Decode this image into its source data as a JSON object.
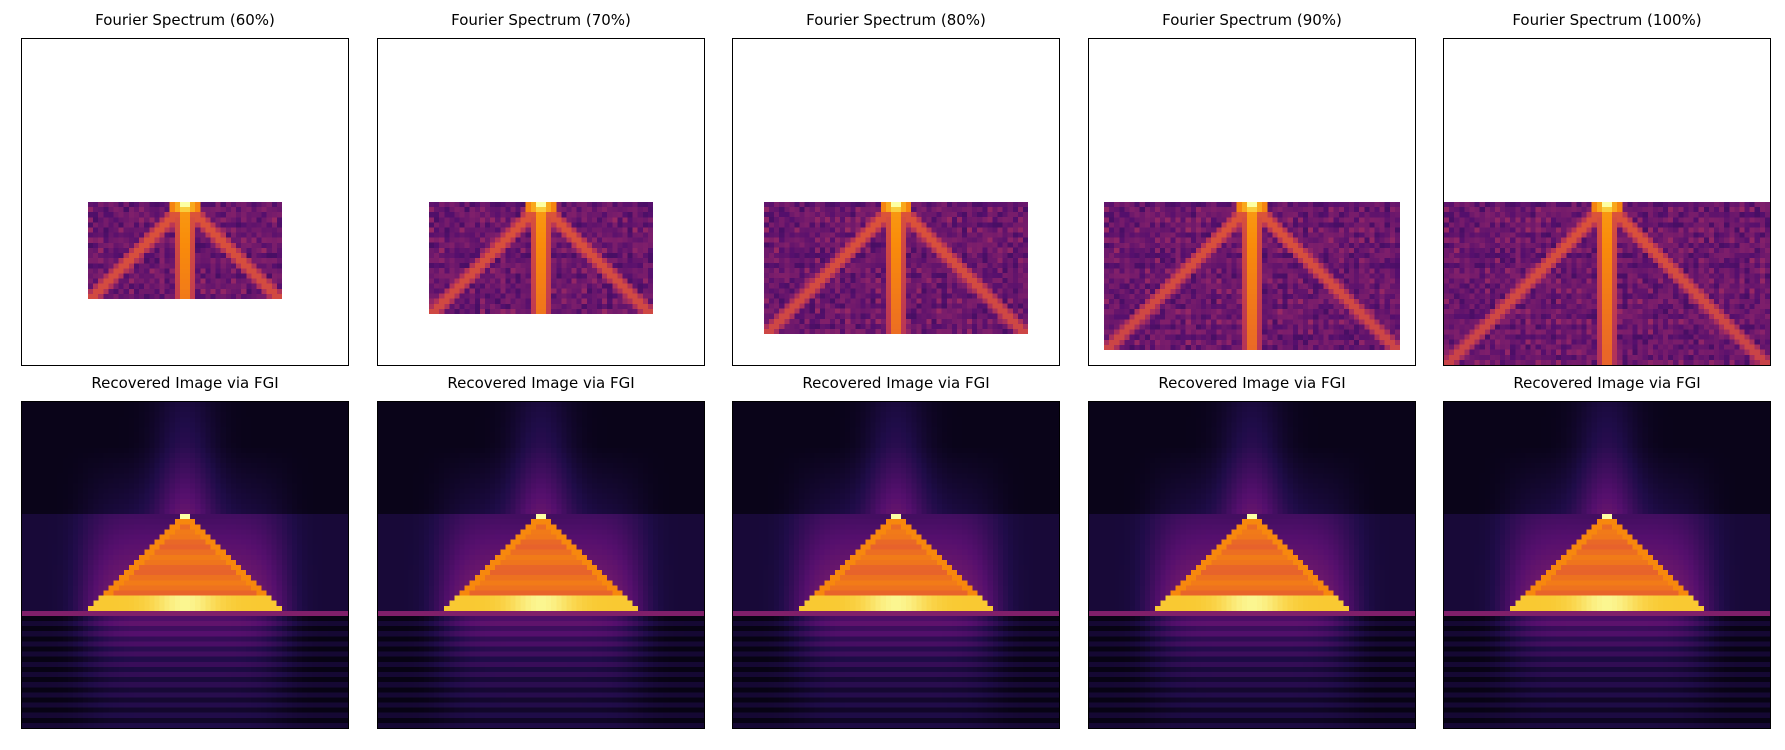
{
  "figure": {
    "colormap": "inferno",
    "panels": [
      {
        "title": "Fourier Spectrum (60%)",
        "kind": "spectrum",
        "fraction": 0.6
      },
      {
        "title": "Fourier Spectrum (70%)",
        "kind": "spectrum",
        "fraction": 0.7
      },
      {
        "title": "Fourier Spectrum (80%)",
        "kind": "spectrum",
        "fraction": 0.8
      },
      {
        "title": "Fourier Spectrum (90%)",
        "kind": "spectrum",
        "fraction": 0.9
      },
      {
        "title": "Fourier Spectrum (100%)",
        "kind": "spectrum",
        "fraction": 1.0
      },
      {
        "title": "Recovered Image via FGI",
        "kind": "recovered",
        "fraction": 0.6
      },
      {
        "title": "Recovered Image via FGI",
        "kind": "recovered",
        "fraction": 0.7
      },
      {
        "title": "Recovered Image via FGI",
        "kind": "recovered",
        "fraction": 0.8
      },
      {
        "title": "Recovered Image via FGI",
        "kind": "recovered",
        "fraction": 0.9
      },
      {
        "title": "Recovered Image via FGI",
        "kind": "recovered",
        "fraction": 1.0
      }
    ]
  },
  "chart_data": [
    {
      "type": "heatmap",
      "title": "Fourier Spectrum (60%)",
      "sampling_ratio": 0.6,
      "colormap": "inferno",
      "axes_ticks": false
    },
    {
      "type": "heatmap",
      "title": "Fourier Spectrum (70%)",
      "sampling_ratio": 0.7,
      "colormap": "inferno",
      "axes_ticks": false
    },
    {
      "type": "heatmap",
      "title": "Fourier Spectrum (80%)",
      "sampling_ratio": 0.8,
      "colormap": "inferno",
      "axes_ticks": false
    },
    {
      "type": "heatmap",
      "title": "Fourier Spectrum (90%)",
      "sampling_ratio": 0.9,
      "colormap": "inferno",
      "axes_ticks": false
    },
    {
      "type": "heatmap",
      "title": "Fourier Spectrum (100%)",
      "sampling_ratio": 1.0,
      "colormap": "inferno",
      "axes_ticks": false
    },
    {
      "type": "heatmap",
      "title": "Recovered Image via FGI",
      "sampling_ratio": 0.6,
      "colormap": "inferno",
      "axes_ticks": false
    },
    {
      "type": "heatmap",
      "title": "Recovered Image via FGI",
      "sampling_ratio": 0.7,
      "colormap": "inferno",
      "axes_ticks": false
    },
    {
      "type": "heatmap",
      "title": "Recovered Image via FGI",
      "sampling_ratio": 0.8,
      "colormap": "inferno",
      "axes_ticks": false
    },
    {
      "type": "heatmap",
      "title": "Recovered Image via FGI",
      "sampling_ratio": 0.9,
      "colormap": "inferno",
      "axes_ticks": false
    },
    {
      "type": "heatmap",
      "title": "Recovered Image via FGI",
      "sampling_ratio": 1.0,
      "colormap": "inferno",
      "axes_ticks": false
    }
  ]
}
